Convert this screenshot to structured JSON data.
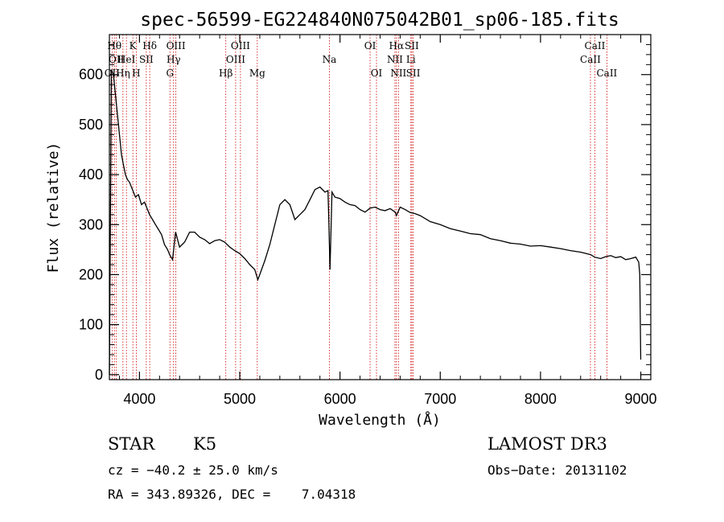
{
  "chart_data": {
    "type": "line",
    "title": "spec-56599-EG224840N075042B01_sp06-185.fits",
    "xlabel": "Wavelength (Å)",
    "ylabel": "Flux (relative)",
    "xlim": [
      3700,
      9100
    ],
    "ylim": [
      -10,
      680
    ],
    "grid": false,
    "x_ticks": [
      4000,
      5000,
      6000,
      7000,
      8000,
      9000
    ],
    "y_ticks": [
      0,
      100,
      200,
      300,
      400,
      500,
      600
    ],
    "series": [
      {
        "x": [
          3700,
          3720,
          3740,
          3760,
          3780,
          3800,
          3820,
          3840,
          3860,
          3880,
          3900,
          3930,
          3960,
          3990,
          4020,
          4050,
          4080,
          4100,
          4130,
          4160,
          4190,
          4220,
          4250,
          4280,
          4300,
          4330,
          4360,
          4400,
          4450,
          4500,
          4550,
          4600,
          4650,
          4700,
          4750,
          4800,
          4850,
          4900,
          4950,
          5000,
          5050,
          5100,
          5150,
          5180,
          5200,
          5250,
          5300,
          5350,
          5400,
          5450,
          5500,
          5550,
          5600,
          5650,
          5700,
          5750,
          5800,
          5850,
          5880,
          5890,
          5900,
          5920,
          5950,
          6000,
          6050,
          6100,
          6150,
          6200,
          6250,
          6300,
          6350,
          6400,
          6450,
          6500,
          6550,
          6563,
          6600,
          6650,
          6700,
          6750,
          6800,
          6900,
          7000,
          7100,
          7200,
          7300,
          7400,
          7500,
          7600,
          7700,
          7800,
          7900,
          8000,
          8100,
          8200,
          8300,
          8400,
          8500,
          8540,
          8600,
          8650,
          8700,
          8750,
          8800,
          8850,
          8900,
          8950,
          8980,
          8990,
          9000
        ],
        "y": [
          0,
          610,
          600,
          560,
          520,
          480,
          440,
          420,
          400,
          390,
          385,
          370,
          355,
          360,
          340,
          345,
          330,
          320,
          310,
          300,
          290,
          280,
          260,
          250,
          240,
          230,
          285,
          255,
          265,
          285,
          285,
          275,
          270,
          262,
          268,
          270,
          265,
          255,
          248,
          242,
          232,
          220,
          210,
          190,
          200,
          228,
          260,
          300,
          340,
          350,
          340,
          310,
          320,
          330,
          350,
          370,
          375,
          365,
          368,
          300,
          210,
          365,
          355,
          352,
          345,
          340,
          338,
          330,
          325,
          333,
          335,
          330,
          328,
          332,
          325,
          318,
          335,
          330,
          324,
          322,
          318,
          306,
          300,
          292,
          287,
          282,
          280,
          272,
          268,
          263,
          261,
          257,
          258,
          255,
          252,
          248,
          245,
          240,
          235,
          232,
          236,
          238,
          234,
          236,
          230,
          232,
          235,
          225,
          200,
          30
        ]
      }
    ],
    "line_ids": [
      {
        "x": 3727,
        "row": 2,
        "label": "OII"
      },
      {
        "x": 3750,
        "row": 0,
        "label": "Hθ"
      },
      {
        "x": 3770,
        "row": 1,
        "label": "OII"
      },
      {
        "x": 3835,
        "row": 2,
        "label": "Hη"
      },
      {
        "x": 3870,
        "row": 1,
        "label": "HeI"
      },
      {
        "x": 3934,
        "row": 0,
        "label": "K"
      },
      {
        "x": 3968,
        "row": 2,
        "label": "H"
      },
      {
        "x": 4068,
        "row": 1,
        "label": "SII"
      },
      {
        "x": 4102,
        "row": 0,
        "label": "Hδ"
      },
      {
        "x": 4304,
        "row": 2,
        "label": "G"
      },
      {
        "x": 4340,
        "row": 1,
        "label": "Hγ"
      },
      {
        "x": 4363,
        "row": 0,
        "label": "OIII"
      },
      {
        "x": 4861,
        "row": 2,
        "label": "Hβ"
      },
      {
        "x": 4959,
        "row": 1,
        "label": "OIII"
      },
      {
        "x": 5007,
        "row": 0,
        "label": "OIII"
      },
      {
        "x": 5175,
        "row": 2,
        "label": "Mg"
      },
      {
        "x": 5894,
        "row": 1,
        "label": "Na"
      },
      {
        "x": 6300,
        "row": 0,
        "label": "OI"
      },
      {
        "x": 6364,
        "row": 2,
        "label": "OI"
      },
      {
        "x": 6548,
        "row": 1,
        "label": "NII"
      },
      {
        "x": 6563,
        "row": 0,
        "label": "Hα"
      },
      {
        "x": 6583,
        "row": 2,
        "label": "NII"
      },
      {
        "x": 6707,
        "row": 1,
        "label": "Li"
      },
      {
        "x": 6716,
        "row": 0,
        "label": "SII"
      },
      {
        "x": 6730,
        "row": 2,
        "label": "SII"
      },
      {
        "x": 8498,
        "row": 1,
        "label": "CaII"
      },
      {
        "x": 8542,
        "row": 0,
        "label": "CaII"
      },
      {
        "x": 8662,
        "row": 2,
        "label": "CaII"
      }
    ]
  },
  "footer": {
    "object_class": "STAR",
    "subclass": "K5",
    "survey": "LAMOST DR3",
    "redshift": "cz = −40.2 ± 25.0 km/s",
    "obs_date": "Obs−Date: 20131102",
    "coords": "RA = 343.89326, DEC =    7.04318"
  },
  "colors": {
    "spectrum": "#000000",
    "line_markers": "#cc0000",
    "axes": "#000000"
  }
}
